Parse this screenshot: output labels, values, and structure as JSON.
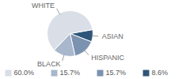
{
  "chart_data": {
    "type": "pie",
    "categories": [
      "WHITE",
      "BLACK",
      "HISPANIC",
      "ASIAN"
    ],
    "values": [
      60.0,
      15.7,
      15.7,
      8.6
    ],
    "value_labels": [
      "60.0%",
      "15.7%",
      "15.7%",
      "8.6%"
    ],
    "colors": [
      "#d9dee7",
      "#a8b7cb",
      "#7b92b0",
      "#2f5679"
    ],
    "legend": "bottom"
  }
}
